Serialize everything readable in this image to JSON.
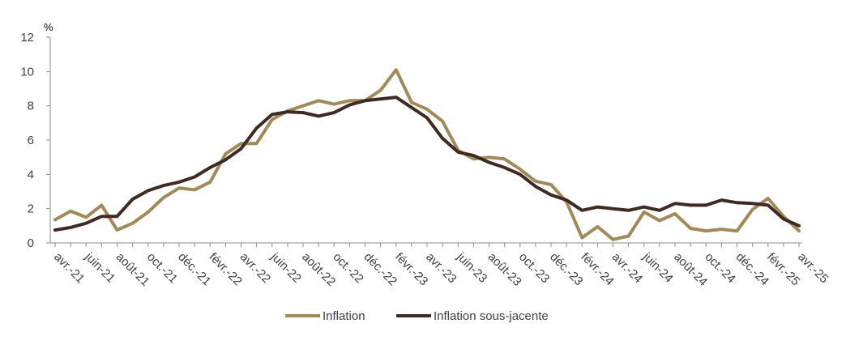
{
  "chart_data": {
    "type": "line",
    "unit": "%",
    "ylim": [
      0,
      12
    ],
    "yticks": [
      0,
      2,
      4,
      6,
      8,
      10,
      12
    ],
    "grid": false,
    "legend_position": "bottom",
    "x": [
      "2021-04",
      "2021-05",
      "2021-06",
      "2021-07",
      "2021-08",
      "2021-09",
      "2021-10",
      "2021-11",
      "2021-12",
      "2022-01",
      "2022-02",
      "2022-03",
      "2022-04",
      "2022-05",
      "2022-06",
      "2022-07",
      "2022-08",
      "2022-09",
      "2022-10",
      "2022-11",
      "2022-12",
      "2023-01",
      "2023-02",
      "2023-03",
      "2023-04",
      "2023-05",
      "2023-06",
      "2023-07",
      "2023-08",
      "2023-09",
      "2023-10",
      "2023-11",
      "2023-12",
      "2024-01",
      "2024-02",
      "2024-03",
      "2024-04",
      "2024-05",
      "2024-06",
      "2024-07",
      "2024-08",
      "2024-09",
      "2024-10",
      "2024-11",
      "2024-12",
      "2025-01",
      "2025-02",
      "2025-03",
      "2025-04"
    ],
    "x_tick_labels": [
      "avr.-21",
      "juin-21",
      "août-21",
      "oct.-21",
      "déc.-21",
      "févr.-22",
      "avr.-22",
      "juin-22",
      "août-22",
      "oct.-22",
      "déc.-22",
      "févr.-23",
      "avr.-23",
      "juin-23",
      "août-23",
      "oct.-23",
      "déc.-23",
      "févr.-24",
      "avr.-24",
      "juin-24",
      "août-24",
      "oct.-24",
      "déc.-24",
      "févr.-25",
      "avr.-25"
    ],
    "series": [
      {
        "name": "Inflation",
        "color": "#a08a5a",
        "values": [
          1.35,
          1.85,
          1.5,
          2.2,
          0.75,
          1.15,
          1.8,
          2.65,
          3.2,
          3.1,
          3.55,
          5.2,
          5.8,
          5.8,
          7.2,
          7.7,
          8.0,
          8.3,
          8.1,
          8.3,
          8.3,
          8.9,
          10.1,
          8.2,
          7.8,
          7.1,
          5.4,
          4.9,
          5.0,
          4.9,
          4.3,
          3.6,
          3.4,
          2.4,
          0.3,
          0.95,
          0.2,
          0.4,
          1.8,
          1.3,
          1.7,
          0.85,
          0.7,
          0.8,
          0.7,
          1.95,
          2.6,
          1.55,
          0.7
        ]
      },
      {
        "name": "Inflation sous-jacente",
        "color": "#3e2a22",
        "values": [
          0.75,
          0.9,
          1.15,
          1.55,
          1.55,
          2.55,
          3.05,
          3.35,
          3.55,
          3.85,
          4.4,
          4.85,
          5.5,
          6.7,
          7.5,
          7.65,
          7.6,
          7.4,
          7.6,
          8.05,
          8.3,
          8.4,
          8.5,
          7.9,
          7.3,
          6.1,
          5.3,
          5.1,
          4.7,
          4.4,
          4.0,
          3.3,
          2.8,
          2.5,
          1.9,
          2.1,
          2.0,
          1.9,
          2.1,
          1.9,
          2.3,
          2.2,
          2.2,
          2.5,
          2.35,
          2.3,
          2.2,
          1.4,
          1.0
        ]
      }
    ]
  }
}
